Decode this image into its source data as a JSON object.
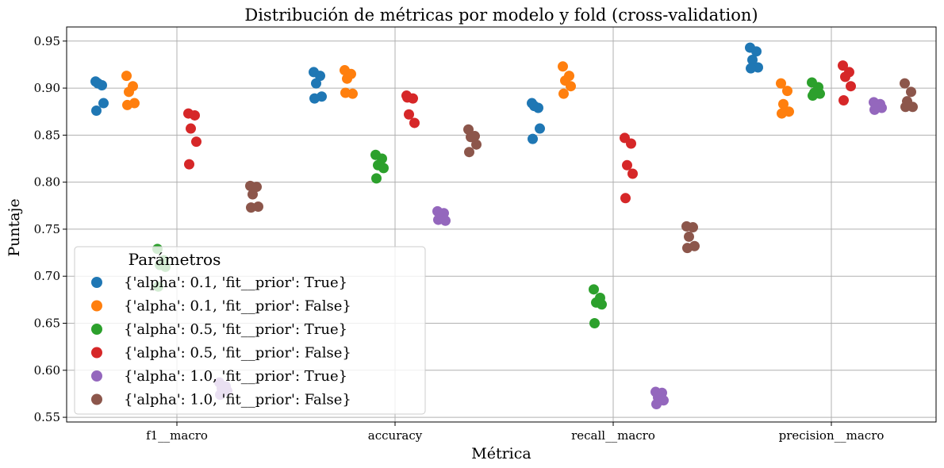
{
  "chart_data": {
    "type": "scatter",
    "title": "Distribución de métricas por modelo y fold (cross-validation)",
    "xlabel": "Métrica",
    "ylabel": "Puntaje",
    "categories": [
      "f1__macro",
      "accuracy",
      "recall__macro",
      "precision__macro"
    ],
    "ylim": [
      0.545,
      0.965
    ],
    "yticks": [
      "0.55",
      "0.60",
      "0.65",
      "0.70",
      "0.75",
      "0.80",
      "0.85",
      "0.90",
      "0.95"
    ],
    "grid": true,
    "legend": {
      "title": "Parámetros",
      "placement": "lower-left"
    },
    "series": [
      {
        "name": "{'alpha': 0.1, 'fit__prior': True}",
        "color": "#1f77b4",
        "values": [
          [
            0.907,
            0.903,
            0.905,
            0.884,
            0.876
          ],
          [
            0.917,
            0.913,
            0.905,
            0.891,
            0.889
          ],
          [
            0.884,
            0.879,
            0.881,
            0.857,
            0.846
          ],
          [
            0.943,
            0.939,
            0.93,
            0.922,
            0.921
          ]
        ]
      },
      {
        "name": "{'alpha': 0.1, 'fit__prior': False}",
        "color": "#ff7f0e",
        "values": [
          [
            0.913,
            0.902,
            0.896,
            0.884,
            0.882
          ],
          [
            0.919,
            0.915,
            0.91,
            0.894,
            0.895
          ],
          [
            0.923,
            0.913,
            0.908,
            0.902,
            0.894
          ],
          [
            0.905,
            0.897,
            0.883,
            0.875,
            0.873
          ]
        ]
      },
      {
        "name": "{'alpha': 0.5, 'fit__prior': True}",
        "color": "#2ca02c",
        "values": [
          [
            0.729,
            0.717,
            0.712,
            0.71,
            0.689
          ],
          [
            0.829,
            0.825,
            0.818,
            0.815,
            0.804
          ],
          [
            0.686,
            0.677,
            0.672,
            0.67,
            0.65
          ],
          [
            0.906,
            0.901,
            0.895,
            0.894,
            0.892
          ]
        ]
      },
      {
        "name": "{'alpha': 0.5, 'fit__prior': False}",
        "color": "#d62728",
        "values": [
          [
            0.873,
            0.871,
            0.857,
            0.843,
            0.819
          ],
          [
            0.892,
            0.889,
            0.872,
            0.863,
            0.89
          ],
          [
            0.847,
            0.841,
            0.818,
            0.809,
            0.783
          ],
          [
            0.924,
            0.917,
            0.912,
            0.902,
            0.887
          ]
        ]
      },
      {
        "name": "{'alpha': 1.0, 'fit__prior': True}",
        "color": "#9467bd",
        "values": [
          [
            0.587,
            0.583,
            0.581,
            0.578,
            0.574
          ],
          [
            0.769,
            0.767,
            0.762,
            0.759,
            0.76
          ],
          [
            0.577,
            0.576,
            0.571,
            0.568,
            0.564
          ],
          [
            0.885,
            0.883,
            0.881,
            0.879,
            0.877
          ]
        ]
      },
      {
        "name": "{'alpha': 1.0, 'fit__prior': False}",
        "color": "#8c564b",
        "values": [
          [
            0.796,
            0.795,
            0.787,
            0.774,
            0.773
          ],
          [
            0.856,
            0.849,
            0.848,
            0.84,
            0.832
          ],
          [
            0.753,
            0.752,
            0.742,
            0.732,
            0.73
          ],
          [
            0.905,
            0.896,
            0.886,
            0.88,
            0.88
          ]
        ]
      }
    ]
  }
}
